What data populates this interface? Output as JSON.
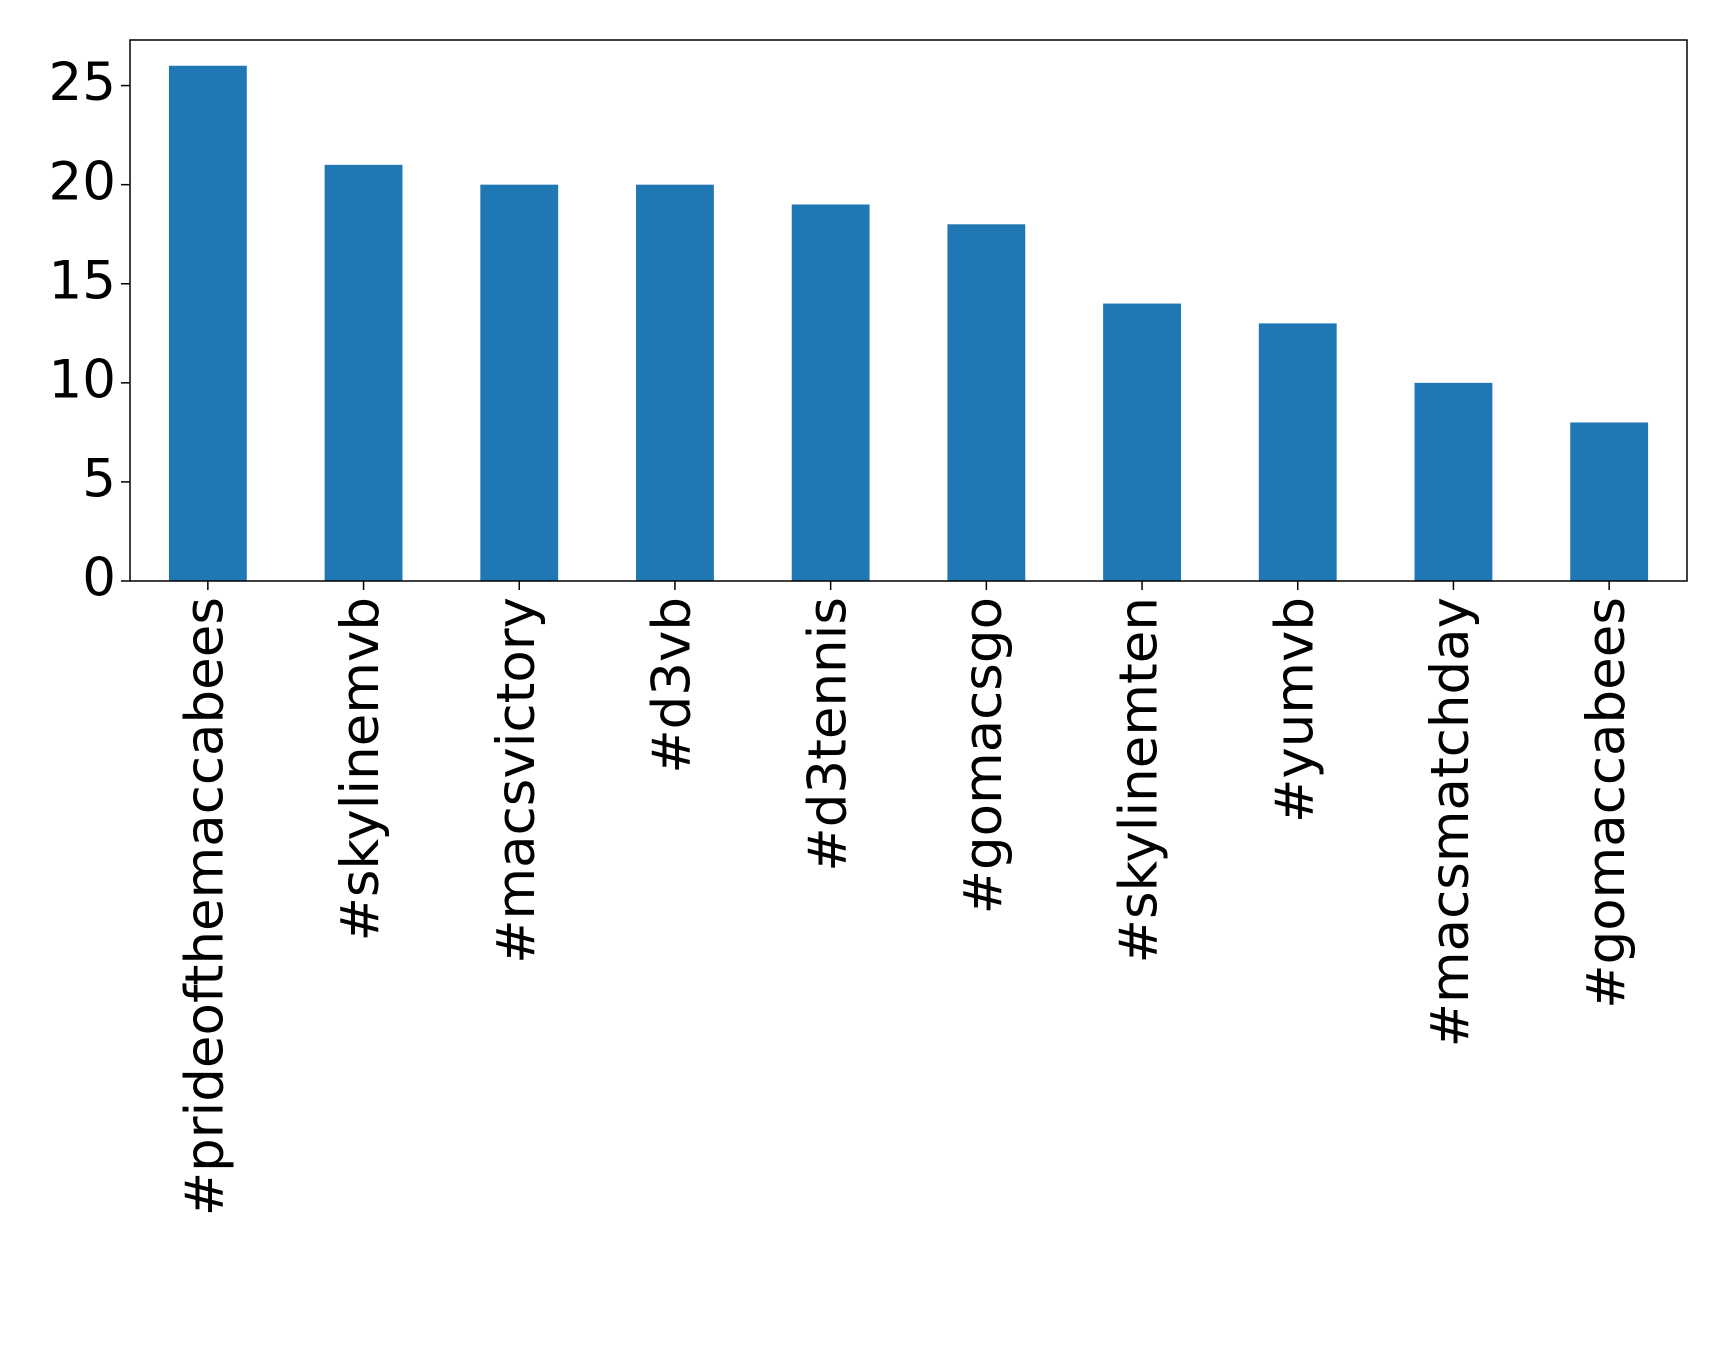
{
  "chart_data": {
    "type": "bar",
    "categories": [
      "#prideofthemaccabees",
      "#skylinemvb",
      "#macsvictory",
      "#d3vb",
      "#d3tennis",
      "#gomacsgo",
      "#skylinemten",
      "#yumvb",
      "#macsmatchday",
      "#gomaccabees"
    ],
    "values": [
      26,
      21,
      20,
      20,
      19,
      18,
      14,
      13,
      10,
      8
    ],
    "color": "#1f77b4",
    "ylim": [
      0,
      27.3
    ],
    "yticks": [
      0,
      5,
      10,
      15,
      20,
      25
    ],
    "grid": false
  }
}
